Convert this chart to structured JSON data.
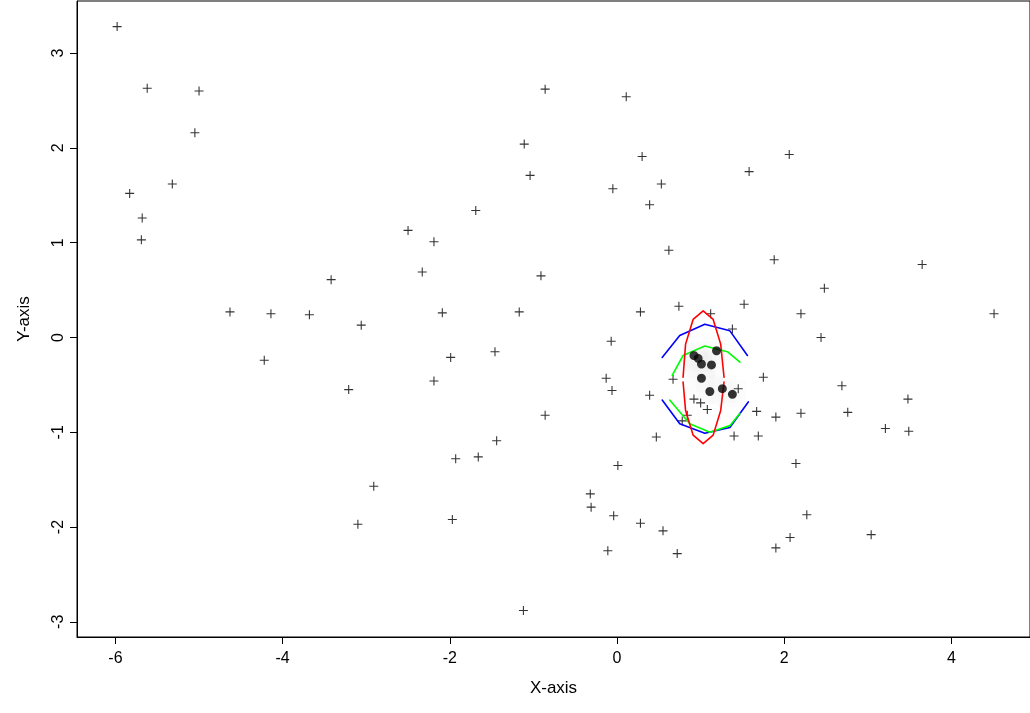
{
  "chart_data": {
    "type": "scatter",
    "xlabel": "X-axis",
    "ylabel": "Y-axis",
    "xlim": [
      -6.46,
      4.94
    ],
    "ylim": [
      -3.16,
      3.55
    ],
    "xticks": [
      -6,
      -4,
      -2,
      0,
      2,
      4
    ],
    "yticks": [
      -3,
      -2,
      -1,
      0,
      1,
      2,
      3
    ],
    "grid": false,
    "series": [
      {
        "marker": "cross",
        "color": "#000000",
        "x": [
          -5.98,
          -5.62,
          -5.0,
          -5.05,
          -5.83,
          -5.32,
          -5.68,
          -5.69,
          -4.63,
          -4.14,
          -3.68,
          -3.42,
          -3.06,
          -4.22,
          -3.21,
          -2.91,
          -3.1,
          -2.5,
          -2.33,
          -2.19,
          -1.69,
          -2.09,
          -2.19,
          -1.99,
          -1.46,
          -1.93,
          -1.66,
          -1.44,
          -1.97,
          -1.17,
          -1.11,
          -1.04,
          -0.86,
          -0.91,
          -0.86,
          -1.12,
          0.11,
          0.3,
          -0.05,
          0.53,
          0.39,
          2.06,
          1.58,
          0.62,
          1.88,
          3.65,
          2.48,
          0.28,
          0.74,
          1.12,
          1.52,
          2.2,
          4.51,
          1.38,
          2.44,
          0.47,
          1.4,
          1.69,
          3.21,
          3.49,
          0.01,
          -0.32,
          -0.31,
          -0.04,
          0.28,
          0.55,
          -0.11,
          0.72,
          2.14,
          2.27,
          2.07,
          1.9,
          3.04,
          0.67,
          1.75,
          0.39,
          1.45,
          0.92,
          1.0,
          1.08,
          1.67,
          1.9,
          0.84,
          0.78,
          -0.07,
          -0.13,
          -0.06,
          2.2,
          2.69,
          2.76,
          3.48
        ],
        "values": [
          3.28,
          2.63,
          2.6,
          2.16,
          1.52,
          1.62,
          1.26,
          1.03,
          0.27,
          0.25,
          0.24,
          0.61,
          0.13,
          -0.24,
          -0.55,
          -1.57,
          -1.97,
          1.13,
          0.69,
          1.01,
          1.34,
          0.26,
          -0.46,
          -0.21,
          -0.15,
          -1.28,
          -1.26,
          -1.09,
          -1.92,
          0.27,
          2.04,
          1.71,
          2.62,
          0.65,
          -0.82,
          -2.88,
          2.54,
          1.91,
          1.57,
          1.62,
          1.4,
          1.93,
          1.75,
          0.92,
          0.82,
          0.77,
          0.52,
          0.27,
          0.33,
          0.25,
          0.35,
          0.25,
          0.25,
          0.09,
          0.0,
          -1.05,
          -1.04,
          -1.04,
          -0.96,
          -0.99,
          -1.35,
          -1.65,
          -1.79,
          -1.88,
          -1.96,
          -2.04,
          -2.25,
          -2.28,
          -1.33,
          -1.87,
          -2.11,
          -2.22,
          -2.08,
          -0.44,
          -0.42,
          -0.61,
          -0.54,
          -0.65,
          -0.69,
          -0.76,
          -0.78,
          -0.84,
          -0.82,
          -0.88,
          -0.04,
          -0.43,
          -0.56,
          -0.8,
          -0.51,
          -0.79,
          -0.65
        ]
      },
      {
        "type": "line",
        "marker": "none",
        "color": "#0000ff",
        "x": [
          0.54,
          0.75,
          1.05,
          1.35,
          1.56
        ],
        "values": [
          -0.21,
          0.02,
          0.14,
          0.07,
          -0.19
        ]
      },
      {
        "type": "line",
        "marker": "none",
        "color": "#0000ff",
        "x": [
          0.54,
          0.75,
          1.05,
          1.35,
          1.57
        ],
        "values": [
          -0.66,
          -0.91,
          -1.01,
          -0.95,
          -0.68
        ]
      },
      {
        "type": "line",
        "marker": "none",
        "color": "#00ff00",
        "x": [
          0.66,
          0.79,
          1.05,
          1.32,
          1.47
        ],
        "values": [
          -0.4,
          -0.19,
          -0.09,
          -0.15,
          -0.26
        ]
      },
      {
        "type": "line",
        "marker": "none",
        "color": "#00ff00",
        "x": [
          0.63,
          0.87,
          1.11,
          1.35,
          1.47
        ],
        "values": [
          -0.66,
          -0.91,
          -1.0,
          -0.93,
          -0.8
        ]
      },
      {
        "type": "line",
        "marker": "none",
        "color": "#ff0000",
        "x": [
          0.79,
          0.82,
          0.91,
          1.03,
          1.15,
          1.24,
          1.28
        ],
        "values": [
          -0.42,
          -0.07,
          0.19,
          0.28,
          0.19,
          -0.07,
          -0.42
        ]
      },
      {
        "type": "line",
        "marker": "none",
        "color": "#ff0000",
        "x": [
          0.79,
          0.82,
          0.91,
          1.03,
          1.15,
          1.24,
          1.28
        ],
        "values": [
          -0.47,
          -0.77,
          -1.03,
          -1.12,
          -1.03,
          -0.77,
          -0.47
        ]
      },
      {
        "marker": "circle",
        "color": "#000000",
        "x": [
          0.92,
          0.97,
          1.01,
          1.13,
          1.19,
          1.01,
          1.11,
          1.26,
          1.38
        ],
        "values": [
          -0.19,
          -0.22,
          -0.28,
          -0.29,
          -0.14,
          -0.43,
          -0.57,
          -0.54,
          -0.6
        ]
      }
    ]
  }
}
